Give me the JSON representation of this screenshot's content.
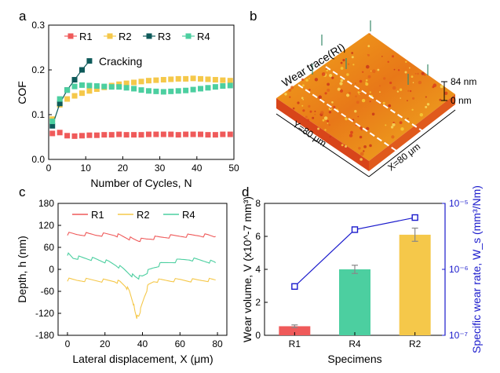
{
  "colors": {
    "R1": "#ef5a5a",
    "R2": "#f5c84a",
    "R3": "#0e5a5a",
    "R4": "#4ccfa0",
    "rate": "#1a1acc",
    "err": "#888888"
  },
  "chart_data": [
    {
      "panel": "a",
      "type": "scatter",
      "xlabel": "Number of Cycles, N",
      "ylabel": "COF",
      "xlim": [
        0,
        50
      ],
      "ylim": [
        0.0,
        0.3
      ],
      "xticks": [
        "0",
        "10",
        "20",
        "30",
        "40",
        "50"
      ],
      "yticks": [
        "0.0",
        "0.1",
        "0.2",
        "0.3"
      ],
      "legend": [
        "R1",
        "R2",
        "R3",
        "R4"
      ],
      "annotation": "Cracking",
      "series": [
        {
          "name": "R1",
          "x": [
            1,
            3,
            5,
            7,
            9,
            11,
            13,
            15,
            17,
            19,
            21,
            23,
            25,
            27,
            29,
            31,
            33,
            35,
            37,
            39,
            41,
            43,
            45,
            47,
            49
          ],
          "y": [
            0.058,
            0.06,
            0.053,
            0.052,
            0.053,
            0.054,
            0.054,
            0.055,
            0.055,
            0.056,
            0.055,
            0.055,
            0.055,
            0.056,
            0.056,
            0.056,
            0.056,
            0.055,
            0.056,
            0.056,
            0.056,
            0.055,
            0.055,
            0.056,
            0.056
          ]
        },
        {
          "name": "R2",
          "x": [
            1,
            3,
            5,
            7,
            9,
            11,
            13,
            15,
            17,
            19,
            21,
            23,
            25,
            27,
            29,
            31,
            33,
            35,
            37,
            39,
            41,
            43,
            45,
            47,
            49
          ],
          "y": [
            0.09,
            0.122,
            0.135,
            0.142,
            0.148,
            0.153,
            0.157,
            0.161,
            0.165,
            0.168,
            0.17,
            0.172,
            0.174,
            0.176,
            0.177,
            0.178,
            0.179,
            0.18,
            0.18,
            0.181,
            0.18,
            0.179,
            0.178,
            0.177,
            0.176
          ]
        },
        {
          "name": "R3",
          "x": [
            1,
            3,
            5,
            7,
            9,
            11
          ],
          "y": [
            0.075,
            0.125,
            0.155,
            0.178,
            0.2,
            0.22
          ],
          "line": true
        },
        {
          "name": "R4",
          "x": [
            1,
            3,
            5,
            7,
            9,
            11,
            13,
            15,
            17,
            19,
            21,
            23,
            25,
            27,
            29,
            31,
            33,
            35,
            37,
            39,
            41,
            43,
            45,
            47,
            49
          ],
          "y": [
            0.085,
            0.135,
            0.155,
            0.163,
            0.166,
            0.165,
            0.164,
            0.163,
            0.162,
            0.162,
            0.16,
            0.158,
            0.155,
            0.153,
            0.152,
            0.151,
            0.152,
            0.153,
            0.154,
            0.156,
            0.158,
            0.16,
            0.162,
            0.164,
            0.165
          ]
        }
      ]
    },
    {
      "panel": "b",
      "type": "other",
      "description_labels": {
        "trace": "Wear trace(RI)",
        "x": "X=80 μm",
        "y": "Y=80 μm",
        "ztop": "84 nm",
        "zbot": "0 nm"
      }
    },
    {
      "panel": "c",
      "type": "line",
      "xlabel": "Lateral displacement, X (μm)",
      "ylabel": "Depth, h (nm)",
      "xlim": [
        -5,
        85
      ],
      "ylim": [
        -180,
        180
      ],
      "xticks": [
        "0",
        "20",
        "40",
        "60",
        "80"
      ],
      "yticks": [
        "180",
        "120",
        "60",
        "0",
        "-60",
        "-120",
        "-180"
      ],
      "legend": [
        "R1",
        "R2",
        "R4"
      ],
      "series": [
        {
          "name": "R1",
          "x": [
            0,
            5,
            10,
            15,
            20,
            25,
            28,
            32,
            35,
            38,
            42,
            46,
            50,
            55,
            60,
            65,
            70,
            75,
            79
          ],
          "y": [
            97,
            95,
            96,
            94,
            95,
            94,
            92,
            86,
            82,
            80,
            82,
            86,
            88,
            90,
            91,
            92,
            93,
            92,
            90
          ]
        },
        {
          "name": "R2",
          "x": [
            0,
            5,
            10,
            15,
            20,
            25,
            28,
            31,
            33,
            35,
            36,
            37,
            38,
            39,
            41,
            43,
            46,
            50,
            55,
            60,
            65,
            70,
            75,
            79
          ],
          "y": [
            -28,
            -30,
            -29,
            -30,
            -31,
            -32,
            -35,
            -45,
            -60,
            -90,
            -115,
            -130,
            -128,
            -110,
            -75,
            -45,
            -32,
            -30,
            -30,
            -29,
            -30,
            -30,
            -29,
            -29
          ]
        },
        {
          "name": "R4",
          "x": [
            0,
            3,
            6,
            10,
            14,
            18,
            22,
            26,
            30,
            34,
            36,
            38,
            40,
            43,
            46,
            50,
            55,
            60,
            65,
            70,
            75,
            79
          ],
          "y": [
            42,
            30,
            32,
            30,
            28,
            24,
            20,
            12,
            0,
            -15,
            -20,
            -22,
            -18,
            -5,
            5,
            15,
            20,
            25,
            28,
            25,
            22,
            18
          ]
        }
      ]
    },
    {
      "panel": "d",
      "type": "bar",
      "xlabel": "Specimens",
      "ylabel": "Wear volume, V (x10^-7 mm³)",
      "ylabel_right": "Specific wear rate, W_s (mm³/Nm)",
      "categories": [
        "R1",
        "R4",
        "R2"
      ],
      "values": [
        0.55,
        4.0,
        6.1
      ],
      "errors": [
        0.08,
        0.25,
        0.4
      ],
      "ylim": [
        0,
        8
      ],
      "yticks": [
        "0",
        "2",
        "4",
        "6",
        "8"
      ],
      "right_axis": {
        "scale": "log",
        "ylim": [
          1e-07,
          1e-05
        ],
        "ticks": [
          "10⁻⁷",
          "10⁻⁶",
          "10⁻⁵"
        ]
      },
      "rate_series": {
        "name": "Specific wear rate",
        "values": [
          5.5e-07,
          4e-06,
          6.1e-06
        ]
      }
    }
  ]
}
